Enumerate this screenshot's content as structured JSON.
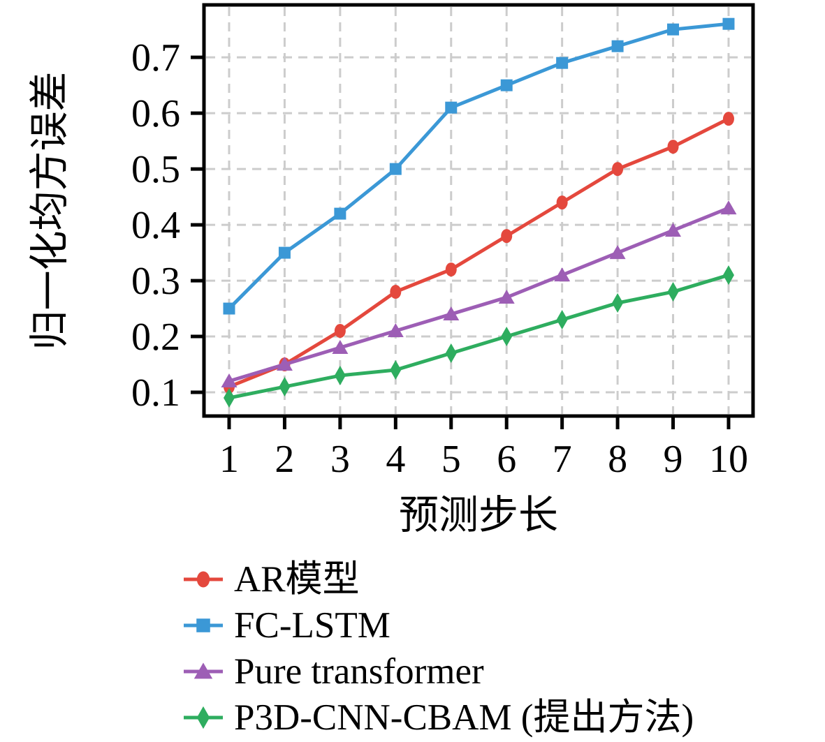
{
  "chart_data": {
    "type": "line",
    "title": "",
    "xlabel": "预测步长",
    "ylabel": "归一化均方误差",
    "x": [
      1,
      2,
      3,
      4,
      5,
      6,
      7,
      8,
      9,
      10
    ],
    "x_tick_labels": [
      "1",
      "2",
      "3",
      "4",
      "5",
      "6",
      "7",
      "8",
      "9",
      "10"
    ],
    "y_ticks": [
      0.1,
      0.2,
      0.3,
      0.4,
      0.5,
      0.6,
      0.7
    ],
    "y_tick_labels": [
      "0.1",
      "0.2",
      "0.3",
      "0.4",
      "0.5",
      "0.6",
      "0.7"
    ],
    "xlim": [
      0.547,
      10.441
    ],
    "ylim": [
      0.0575,
      0.794
    ],
    "grid": true,
    "grid_style": "dashed",
    "grid_color": "#cccccc",
    "spine_color": "#000000",
    "legend_position": "below-left",
    "series": [
      {
        "name": "AR模型",
        "marker": "circle",
        "color": "#e4483d",
        "values": [
          0.11,
          0.15,
          0.21,
          0.28,
          0.32,
          0.38,
          0.44,
          0.5,
          0.54,
          0.59
        ]
      },
      {
        "name": "FC-LSTM",
        "marker": "square",
        "color": "#3b98d6",
        "values": [
          0.25,
          0.35,
          0.42,
          0.5,
          0.61,
          0.65,
          0.69,
          0.72,
          0.75,
          0.76
        ]
      },
      {
        "name": "Pure transformer",
        "marker": "triangle",
        "color": "#9d5eb5",
        "values": [
          0.12,
          0.15,
          0.18,
          0.21,
          0.24,
          0.27,
          0.31,
          0.35,
          0.39,
          0.43
        ]
      },
      {
        "name": "P3D-CNN-CBAM (提出方法)",
        "marker": "diamond",
        "color": "#2ead5f",
        "values": [
          0.09,
          0.11,
          0.13,
          0.14,
          0.17,
          0.2,
          0.23,
          0.26,
          0.28,
          0.31
        ]
      }
    ]
  }
}
